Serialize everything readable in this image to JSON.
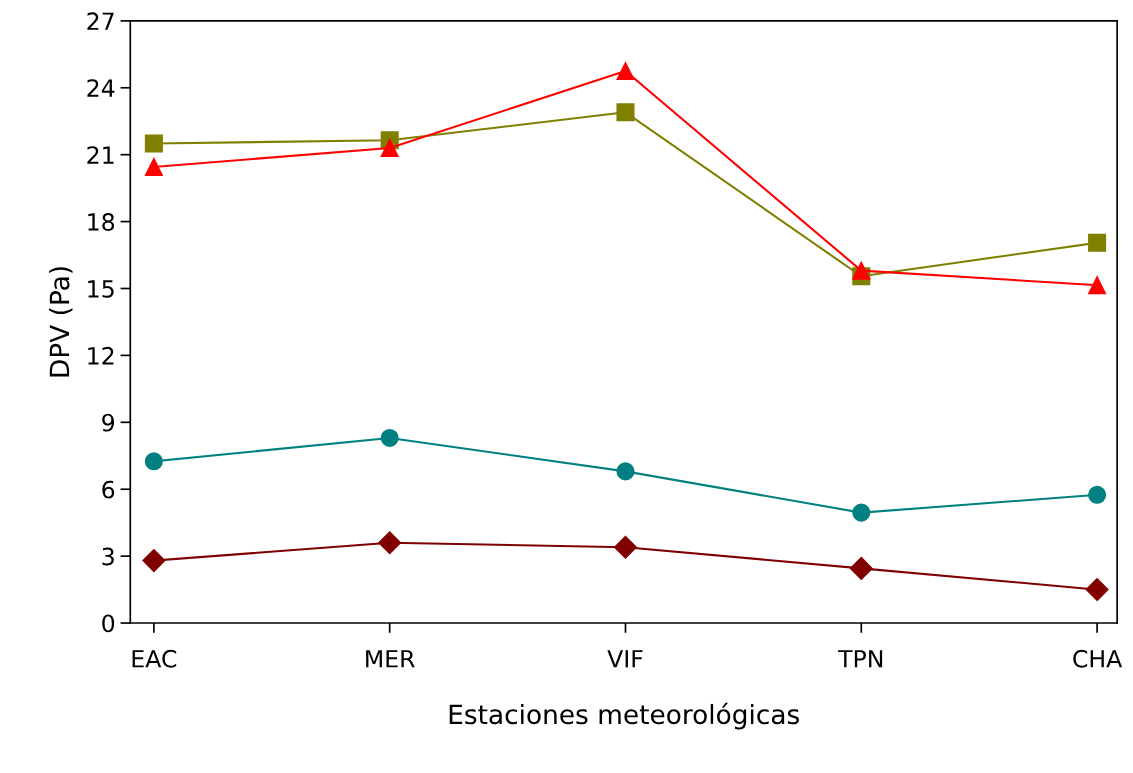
{
  "chart_data": {
    "type": "line",
    "xlabel": "Estaciones meteorológicas",
    "ylabel": "DPV (Pa)",
    "categories": [
      "EAC",
      "MER",
      "VIF",
      "TPN",
      "CHA"
    ],
    "ylim": [
      0,
      27
    ],
    "yticks": [
      0,
      3,
      6,
      9,
      12,
      15,
      18,
      21,
      24,
      27
    ],
    "grid": false,
    "legend": false,
    "series": [
      {
        "color": "#ff0000",
        "marker": "triangle",
        "values": [
          20.45,
          21.3,
          24.75,
          15.8,
          15.15
        ]
      },
      {
        "color": "#808000",
        "marker": "square",
        "values": [
          21.5,
          21.65,
          22.9,
          15.55,
          17.05
        ]
      },
      {
        "color": "#008080",
        "marker": "circle",
        "values": [
          7.25,
          8.3,
          6.8,
          4.95,
          5.75
        ]
      },
      {
        "color": "#800000",
        "marker": "diamond",
        "values": [
          2.8,
          3.6,
          3.4,
          2.45,
          1.5
        ]
      }
    ]
  }
}
